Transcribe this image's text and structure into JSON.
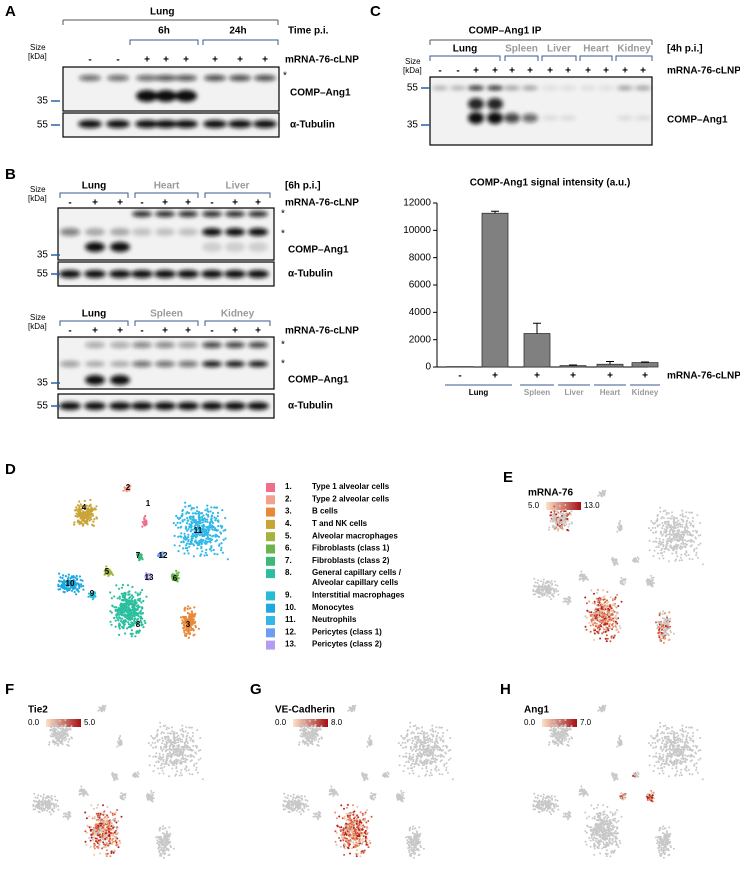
{
  "panel_labels": [
    "A",
    "B",
    "C",
    "D",
    "E",
    "F",
    "G",
    "H"
  ],
  "size_label": "Size",
  "size_unit": "[kDa]",
  "treatment": "mRNA-76-cLNP",
  "asterisk": "*",
  "comp": "COMP–Ang1",
  "tubulin": "α-Tubulin",
  "panel_a": {
    "group": "Lung",
    "time_title": "Time p.i.",
    "times": [
      "6h",
      "24h"
    ],
    "lanes": [
      "-",
      "-",
      "+",
      "+",
      "+",
      "+",
      "+",
      "+"
    ],
    "markers": [
      "35",
      "55"
    ]
  },
  "panel_b": {
    "time": "[6h p.i.]",
    "blots": [
      {
        "groups": [
          "Lung",
          "Heart",
          "Liver"
        ],
        "lanes": [
          "-",
          "+",
          "+",
          "-",
          "+",
          "+",
          "-",
          "+",
          "+"
        ],
        "markers": [
          "35",
          "55"
        ]
      },
      {
        "groups": [
          "Lung",
          "Spleen",
          "Kidney"
        ],
        "lanes": [
          "-",
          "+",
          "+",
          "-",
          "+",
          "+",
          "-",
          "+",
          "+"
        ],
        "markers": [
          "35",
          "55"
        ]
      }
    ]
  },
  "panel_c": {
    "ip_title": "COMP–Ang1 IP",
    "time": "[4h p.i.]",
    "groups": [
      "Lung",
      "Spleen",
      "Liver",
      "Heart",
      "Kidney"
    ],
    "lanes": [
      "-",
      "-",
      "+",
      "+",
      "+",
      "+",
      "+",
      "+",
      "+",
      "+",
      "+",
      "+"
    ],
    "markers": [
      "55",
      "35"
    ]
  },
  "chart_data": {
    "type": "bar",
    "title": "COMP-Ang1 signal intensity (a.u.)",
    "categories": [
      "-",
      "+",
      "+",
      "+",
      "+",
      "+"
    ],
    "groups": [
      "Lung",
      "Spleen",
      "Liver",
      "Heart",
      "Kidney"
    ],
    "values": [
      30,
      11250,
      2450,
      100,
      200,
      320
    ],
    "errors": [
      0,
      150,
      750,
      50,
      200,
      50
    ],
    "color": "#808080",
    "ylim": [
      0,
      12000
    ],
    "yticks": [
      0,
      2000,
      4000,
      6000,
      8000,
      10000,
      12000
    ],
    "xlabel": "mRNA-76-cLNP"
  },
  "panel_d": {
    "legend": [
      {
        "number": "1.",
        "label": "Type 1 alveolar cells",
        "color": "#ef6f8a"
      },
      {
        "number": "2.",
        "label": "Type 2 alveolar cells",
        "color": "#f4a08c"
      },
      {
        "number": "3.",
        "label": "B cells",
        "color": "#e8883a"
      },
      {
        "number": "4.",
        "label": "T and NK cells",
        "color": "#c9a437"
      },
      {
        "number": "5.",
        "label": "Alveolar macrophages",
        "color": "#a3b43a"
      },
      {
        "number": "6.",
        "label": "Fibroblasts (class 1)",
        "color": "#6bb34a"
      },
      {
        "number": "7.",
        "label": "Fibroblasts (class 2)",
        "color": "#3cb878"
      },
      {
        "number": "8.",
        "label": "General capillary cells /",
        "label2": "Alveolar capillary cells",
        "color": "#2bbf9f"
      },
      {
        "number": "9.",
        "label": "Interstitial macrophages",
        "color": "#26bcd6"
      },
      {
        "number": "10.",
        "label": "Monocytes",
        "color": "#1fa8e0"
      },
      {
        "number": "11.",
        "label": "Neutrophils",
        "color": "#31b8e8"
      },
      {
        "number": "12.",
        "label": "Pericytes (class 1)",
        "color": "#6b9ef0"
      },
      {
        "number": "13.",
        "label": "Pericytes (class 2)",
        "color": "#b59cf0"
      }
    ],
    "plot_labels": [
      "1",
      "2",
      "3",
      "4",
      "5",
      "6",
      "7",
      "8",
      "9",
      "10",
      "11",
      "12",
      "13"
    ]
  },
  "feature_plots": [
    {
      "title": "mRNA-76",
      "min": "5.0",
      "max": "13.0"
    },
    {
      "title": "Tie2",
      "min": "0.0",
      "max": "5.0"
    },
    {
      "title": "VE-Cadherin",
      "min": "0.0",
      "max": "8.0"
    },
    {
      "title": "Ang1",
      "min": "0.0",
      "max": "7.0"
    }
  ]
}
